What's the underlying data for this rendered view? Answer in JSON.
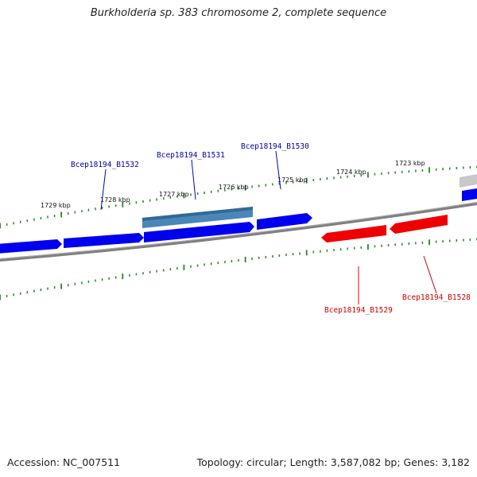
{
  "title": "Burkholderia sp. 383 chromosome 2, complete sequence",
  "footer": {
    "accession": "Accession: NC_007511",
    "summary": "Topology: circular; Length: 3,587,082 bp; Genes: 3,182"
  },
  "colors": {
    "forward_gene": "#0000ee",
    "reverse_gene": "#ee0000",
    "highlight_gene": "#4a86b8",
    "grey_gene": "#c8c8c8",
    "backbone": "#808080",
    "ticks": "#228822"
  },
  "ticks": [
    {
      "label": "1729 kbp"
    },
    {
      "label": "1728 kbp"
    },
    {
      "label": "1727 kbp"
    },
    {
      "label": "1726 kbp"
    },
    {
      "label": "1725 kbp"
    },
    {
      "label": "1724 kbp"
    },
    {
      "label": "1723 kbp"
    }
  ],
  "gene_labels": [
    {
      "label": "Bcep18194_B1532",
      "strand": "forward"
    },
    {
      "label": "Bcep18194_B1531",
      "strand": "forward"
    },
    {
      "label": "Bcep18194_B1530",
      "strand": "forward"
    },
    {
      "label": "Bcep18194_B1529",
      "strand": "reverse"
    },
    {
      "label": "Bcep18194_B1528",
      "strand": "reverse"
    }
  ]
}
